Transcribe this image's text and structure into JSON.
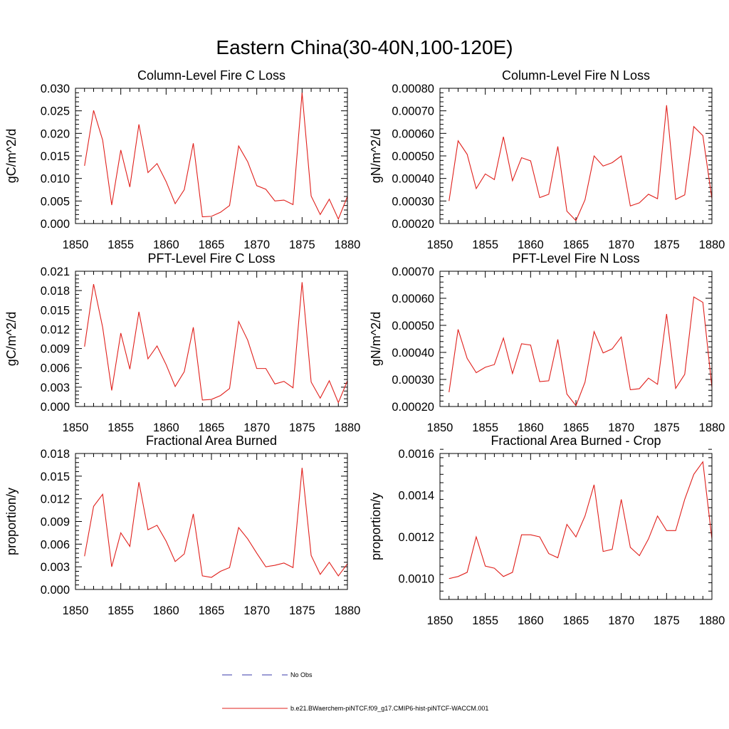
{
  "title": "Eastern China(30-40N,100-120E)",
  "legend": {
    "entries": [
      {
        "label": "No Obs",
        "color": "#3a3aa8",
        "dash": "dashed"
      },
      {
        "label": "b.e21.BWaerchem-piNTCF.f09_g17.CMIP6-hist-piNTCF-WACCM.001",
        "color": "#e0201c",
        "dash": "solid"
      }
    ],
    "placement": "bottom-center"
  },
  "chart_data": [
    {
      "type": "line",
      "title": "Column-Level Fire C Loss",
      "ylabel": "gC/m^2/d",
      "xlim": [
        1850,
        1880
      ],
      "xticks": [
        "1850",
        "1855",
        "1860",
        "1865",
        "1870",
        "1875",
        "1880"
      ],
      "ylim": [
        0.0,
        0.03
      ],
      "yticks": [
        "0.000",
        "0.005",
        "0.010",
        "0.015",
        "0.020",
        "0.025",
        "0.030"
      ],
      "x": [
        1851,
        1852,
        1853,
        1854,
        1855,
        1856,
        1857,
        1858,
        1859,
        1860,
        1861,
        1862,
        1863,
        1864,
        1865,
        1866,
        1867,
        1868,
        1869,
        1870,
        1871,
        1872,
        1873,
        1874,
        1875,
        1876,
        1877,
        1878,
        1879,
        1880
      ],
      "series": [
        {
          "color": "#e0201c",
          "values": [
            0.0128,
            0.0251,
            0.0185,
            0.0041,
            0.0163,
            0.0081,
            0.022,
            0.0113,
            0.0133,
            0.0093,
            0.0044,
            0.0075,
            0.0178,
            0.0015,
            0.0016,
            0.0025,
            0.004,
            0.0172,
            0.0137,
            0.0084,
            0.0076,
            0.005,
            0.0052,
            0.0042,
            0.029,
            0.0061,
            0.002,
            0.0054,
            0.001,
            0.006
          ]
        }
      ]
    },
    {
      "type": "line",
      "title": "Column-Level Fire N Loss",
      "ylabel": "gN/m^2/d",
      "xlim": [
        1850,
        1880
      ],
      "xticks": [
        "1850",
        "1855",
        "1860",
        "1865",
        "1870",
        "1875",
        "1880"
      ],
      "ylim": [
        0.0002,
        0.0008
      ],
      "yticks": [
        "0.00020",
        "0.00030",
        "0.00040",
        "0.00050",
        "0.00060",
        "0.00070",
        "0.00080"
      ],
      "x": [
        1851,
        1852,
        1853,
        1854,
        1855,
        1856,
        1857,
        1858,
        1859,
        1860,
        1861,
        1862,
        1863,
        1864,
        1865,
        1866,
        1867,
        1868,
        1869,
        1870,
        1871,
        1872,
        1873,
        1874,
        1875,
        1876,
        1877,
        1878,
        1879,
        1880
      ],
      "series": [
        {
          "color": "#e0201c",
          "values": [
            0.0003,
            0.000567,
            0.000507,
            0.000355,
            0.00042,
            0.000395,
            0.000585,
            0.00039,
            0.000492,
            0.000478,
            0.000315,
            0.00033,
            0.000542,
            0.000255,
            0.000213,
            0.000305,
            0.0005,
            0.000455,
            0.00047,
            0.0005,
            0.000278,
            0.000292,
            0.00033,
            0.00031,
            0.000725,
            0.000307,
            0.000327,
            0.00063,
            0.00059,
            0.00031
          ]
        }
      ]
    },
    {
      "type": "line",
      "title": "PFT-Level Fire C Loss",
      "ylabel": "gC/m^2/d",
      "xlim": [
        1850,
        1880
      ],
      "xticks": [
        "1850",
        "1855",
        "1860",
        "1865",
        "1870",
        "1875",
        "1880"
      ],
      "ylim": [
        0.0,
        0.021
      ],
      "yticks": [
        "0.000",
        "0.003",
        "0.006",
        "0.009",
        "0.012",
        "0.015",
        "0.018",
        "0.021"
      ],
      "x": [
        1851,
        1852,
        1853,
        1854,
        1855,
        1856,
        1857,
        1858,
        1859,
        1860,
        1861,
        1862,
        1863,
        1864,
        1865,
        1866,
        1867,
        1868,
        1869,
        1870,
        1871,
        1872,
        1873,
        1874,
        1875,
        1876,
        1877,
        1878,
        1879,
        1880
      ],
      "series": [
        {
          "color": "#e0201c",
          "values": [
            0.0093,
            0.019,
            0.0123,
            0.0025,
            0.0114,
            0.0058,
            0.0147,
            0.0074,
            0.0094,
            0.0065,
            0.0031,
            0.0054,
            0.0123,
            0.001,
            0.0011,
            0.0017,
            0.0028,
            0.0132,
            0.0103,
            0.0059,
            0.0059,
            0.0035,
            0.0039,
            0.0029,
            0.0193,
            0.0038,
            0.0013,
            0.004,
            0.0006,
            0.004
          ]
        }
      ]
    },
    {
      "type": "line",
      "title": "PFT-Level Fire N Loss",
      "ylabel": "gN/m^2/d",
      "xlim": [
        1850,
        1880
      ],
      "xticks": [
        "1850",
        "1855",
        "1860",
        "1865",
        "1870",
        "1875",
        "1880"
      ],
      "ylim": [
        0.0002,
        0.0007
      ],
      "yticks": [
        "0.00020",
        "0.00030",
        "0.00040",
        "0.00050",
        "0.00060",
        "0.00070"
      ],
      "x": [
        1851,
        1852,
        1853,
        1854,
        1855,
        1856,
        1857,
        1858,
        1859,
        1860,
        1861,
        1862,
        1863,
        1864,
        1865,
        1866,
        1867,
        1868,
        1869,
        1870,
        1871,
        1872,
        1873,
        1874,
        1875,
        1876,
        1877,
        1878,
        1879,
        1880
      ],
      "series": [
        {
          "color": "#e0201c",
          "values": [
            0.000253,
            0.000485,
            0.000378,
            0.000325,
            0.000345,
            0.000355,
            0.000453,
            0.000322,
            0.000432,
            0.000427,
            0.000292,
            0.000295,
            0.000448,
            0.000246,
            0.000203,
            0.00029,
            0.000477,
            0.000398,
            0.000413,
            0.000457,
            0.000262,
            0.000266,
            0.000305,
            0.000282,
            0.000542,
            0.000267,
            0.000319,
            0.000605,
            0.000585,
            0.00027
          ]
        }
      ]
    },
    {
      "type": "line",
      "title": "Fractional Area Burned",
      "ylabel": "proportion/y",
      "xlim": [
        1850,
        1880
      ],
      "xticks": [
        "1850",
        "1855",
        "1860",
        "1865",
        "1870",
        "1875",
        "1880"
      ],
      "ylim": [
        0.0,
        0.018
      ],
      "yticks": [
        "0.000",
        "0.003",
        "0.006",
        "0.009",
        "0.012",
        "0.015",
        "0.018"
      ],
      "x": [
        1851,
        1852,
        1853,
        1854,
        1855,
        1856,
        1857,
        1858,
        1859,
        1860,
        1861,
        1862,
        1863,
        1864,
        1865,
        1866,
        1867,
        1868,
        1869,
        1870,
        1871,
        1872,
        1873,
        1874,
        1875,
        1876,
        1877,
        1878,
        1879,
        1880
      ],
      "series": [
        {
          "color": "#e0201c",
          "values": [
            0.0044,
            0.011,
            0.0126,
            0.003,
            0.0075,
            0.0057,
            0.0142,
            0.0079,
            0.0085,
            0.0064,
            0.0037,
            0.0047,
            0.01,
            0.0018,
            0.0016,
            0.0024,
            0.0029,
            0.0082,
            0.0067,
            0.0048,
            0.003,
            0.0032,
            0.0035,
            0.0029,
            0.0161,
            0.0045,
            0.002,
            0.0036,
            0.0018,
            0.0034
          ]
        }
      ]
    },
    {
      "type": "line",
      "title": "Fractional Area Burned - Crop",
      "ylabel": "proportion/y",
      "xlim": [
        1850,
        1880
      ],
      "xticks": [
        "1850",
        "1855",
        "1860",
        "1865",
        "1870",
        "1875",
        "1880"
      ],
      "ylim": [
        0.0009,
        0.0016
      ],
      "yticks": [
        "0.0010",
        "0.0012",
        "0.0014",
        "0.0016"
      ],
      "ytickvals": [
        0.001,
        0.0012,
        0.0014,
        0.0016
      ],
      "x": [
        1851,
        1852,
        1853,
        1854,
        1855,
        1856,
        1857,
        1858,
        1859,
        1860,
        1861,
        1862,
        1863,
        1864,
        1865,
        1866,
        1867,
        1868,
        1869,
        1870,
        1871,
        1872,
        1873,
        1874,
        1875,
        1876,
        1877,
        1878,
        1879,
        1880
      ],
      "series": [
        {
          "color": "#e0201c",
          "values": [
            0.001,
            0.00101,
            0.00103,
            0.0012,
            0.00106,
            0.00105,
            0.00101,
            0.00103,
            0.00121,
            0.00121,
            0.0012,
            0.00112,
            0.0011,
            0.00126,
            0.0012,
            0.0013,
            0.00145,
            0.00113,
            0.00114,
            0.00138,
            0.00115,
            0.00111,
            0.00119,
            0.0013,
            0.00123,
            0.00123,
            0.00138,
            0.0015,
            0.00156,
            0.00119
          ]
        }
      ]
    }
  ]
}
